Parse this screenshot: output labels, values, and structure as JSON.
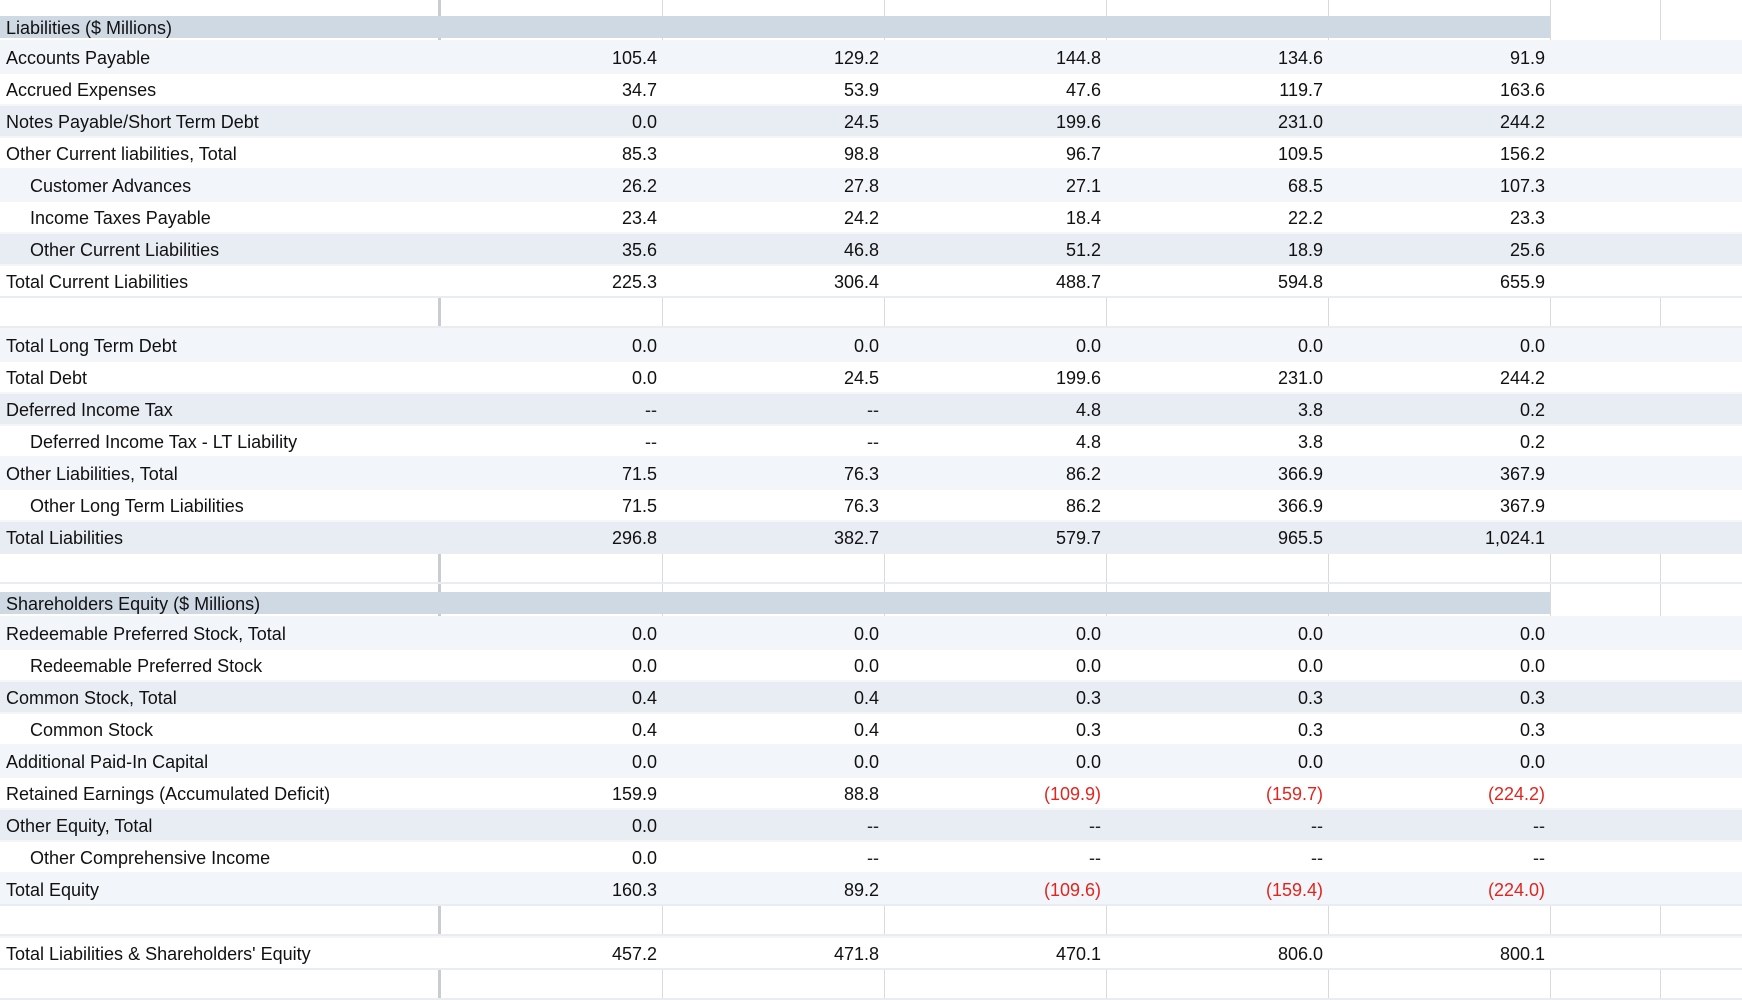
{
  "sections": [
    {
      "type": "header",
      "label": "Liabilities ($ Millions)"
    },
    {
      "type": "data",
      "label": "Accounts Payable",
      "indent": false,
      "values": [
        "105.4",
        "129.2",
        "144.8",
        "134.6",
        "91.9"
      ]
    },
    {
      "type": "data",
      "label": "Accrued Expenses",
      "indent": false,
      "values": [
        "34.7",
        "53.9",
        "47.6",
        "119.7",
        "163.6"
      ]
    },
    {
      "type": "data",
      "label": "Notes Payable/Short Term Debt",
      "indent": false,
      "values": [
        "0.0",
        "24.5",
        "199.6",
        "231.0",
        "244.2"
      ]
    },
    {
      "type": "data",
      "label": "Other Current liabilities, Total",
      "indent": false,
      "values": [
        "85.3",
        "98.8",
        "96.7",
        "109.5",
        "156.2"
      ]
    },
    {
      "type": "data",
      "label": "Customer Advances",
      "indent": true,
      "values": [
        "26.2",
        "27.8",
        "27.1",
        "68.5",
        "107.3"
      ]
    },
    {
      "type": "data",
      "label": "Income Taxes Payable",
      "indent": true,
      "values": [
        "23.4",
        "24.2",
        "18.4",
        "22.2",
        "23.3"
      ]
    },
    {
      "type": "data",
      "label": "Other Current Liabilities",
      "indent": true,
      "values": [
        "35.6",
        "46.8",
        "51.2",
        "18.9",
        "25.6"
      ]
    },
    {
      "type": "data",
      "label": "Total Current Liabilities",
      "indent": false,
      "values": [
        "225.3",
        "306.4",
        "488.7",
        "594.8",
        "655.9"
      ]
    },
    {
      "type": "blank"
    },
    {
      "type": "data",
      "label": "Total Long Term Debt",
      "indent": false,
      "values": [
        "0.0",
        "0.0",
        "0.0",
        "0.0",
        "0.0"
      ]
    },
    {
      "type": "data",
      "label": "Total Debt",
      "indent": false,
      "values": [
        "0.0",
        "24.5",
        "199.6",
        "231.0",
        "244.2"
      ]
    },
    {
      "type": "data",
      "label": "Deferred Income Tax",
      "indent": false,
      "values": [
        "--",
        "--",
        "4.8",
        "3.8",
        "0.2"
      ]
    },
    {
      "type": "data",
      "label": "Deferred Income Tax - LT Liability",
      "indent": true,
      "values": [
        "--",
        "--",
        "4.8",
        "3.8",
        "0.2"
      ]
    },
    {
      "type": "data",
      "label": "Other Liabilities, Total",
      "indent": false,
      "values": [
        "71.5",
        "76.3",
        "86.2",
        "366.9",
        "367.9"
      ]
    },
    {
      "type": "data",
      "label": "Other Long Term Liabilities",
      "indent": true,
      "values": [
        "71.5",
        "76.3",
        "86.2",
        "366.9",
        "367.9"
      ]
    },
    {
      "type": "data",
      "label": "Total Liabilities",
      "indent": false,
      "values": [
        "296.8",
        "382.7",
        "579.7",
        "965.5",
        "1,024.1"
      ]
    },
    {
      "type": "blank"
    },
    {
      "type": "header",
      "label": "Shareholders Equity ($ Millions)"
    },
    {
      "type": "data",
      "label": "Redeemable Preferred Stock, Total",
      "indent": false,
      "values": [
        "0.0",
        "0.0",
        "0.0",
        "0.0",
        "0.0"
      ]
    },
    {
      "type": "data",
      "label": "Redeemable Preferred Stock",
      "indent": true,
      "values": [
        "0.0",
        "0.0",
        "0.0",
        "0.0",
        "0.0"
      ]
    },
    {
      "type": "data",
      "label": "Common Stock, Total",
      "indent": false,
      "values": [
        "0.4",
        "0.4",
        "0.3",
        "0.3",
        "0.3"
      ]
    },
    {
      "type": "data",
      "label": "Common Stock",
      "indent": true,
      "values": [
        "0.4",
        "0.4",
        "0.3",
        "0.3",
        "0.3"
      ]
    },
    {
      "type": "data",
      "label": "Additional Paid-In Capital",
      "indent": false,
      "values": [
        "0.0",
        "0.0",
        "0.0",
        "0.0",
        "0.0"
      ]
    },
    {
      "type": "data",
      "label": "Retained Earnings (Accumulated Deficit)",
      "indent": false,
      "values": [
        "159.9",
        "88.8",
        "(109.9)",
        "(159.7)",
        "(224.2)"
      ]
    },
    {
      "type": "data",
      "label": "Other Equity, Total",
      "indent": false,
      "values": [
        "0.0",
        "--",
        "--",
        "--",
        "--"
      ]
    },
    {
      "type": "data",
      "label": "Other Comprehensive Income",
      "indent": true,
      "values": [
        "0.0",
        "--",
        "--",
        "--",
        "--"
      ]
    },
    {
      "type": "data",
      "label": "Total Equity",
      "indent": false,
      "values": [
        "160.3",
        "89.2",
        "(109.6)",
        "(159.4)",
        "(224.0)"
      ]
    },
    {
      "type": "blank"
    },
    {
      "type": "data",
      "label": "Total Liabilities & Shareholders' Equity",
      "indent": false,
      "values": [
        "457.2",
        "471.8",
        "470.1",
        "806.0",
        "800.1"
      ]
    },
    {
      "type": "blank"
    }
  ],
  "colors": {
    "header_bg": "#cfd9e3",
    "band_bg": "#e8edf4",
    "band_bg_light": "#f2f5f9",
    "negative": "#e0261e",
    "grid": "#d9d9d9"
  }
}
